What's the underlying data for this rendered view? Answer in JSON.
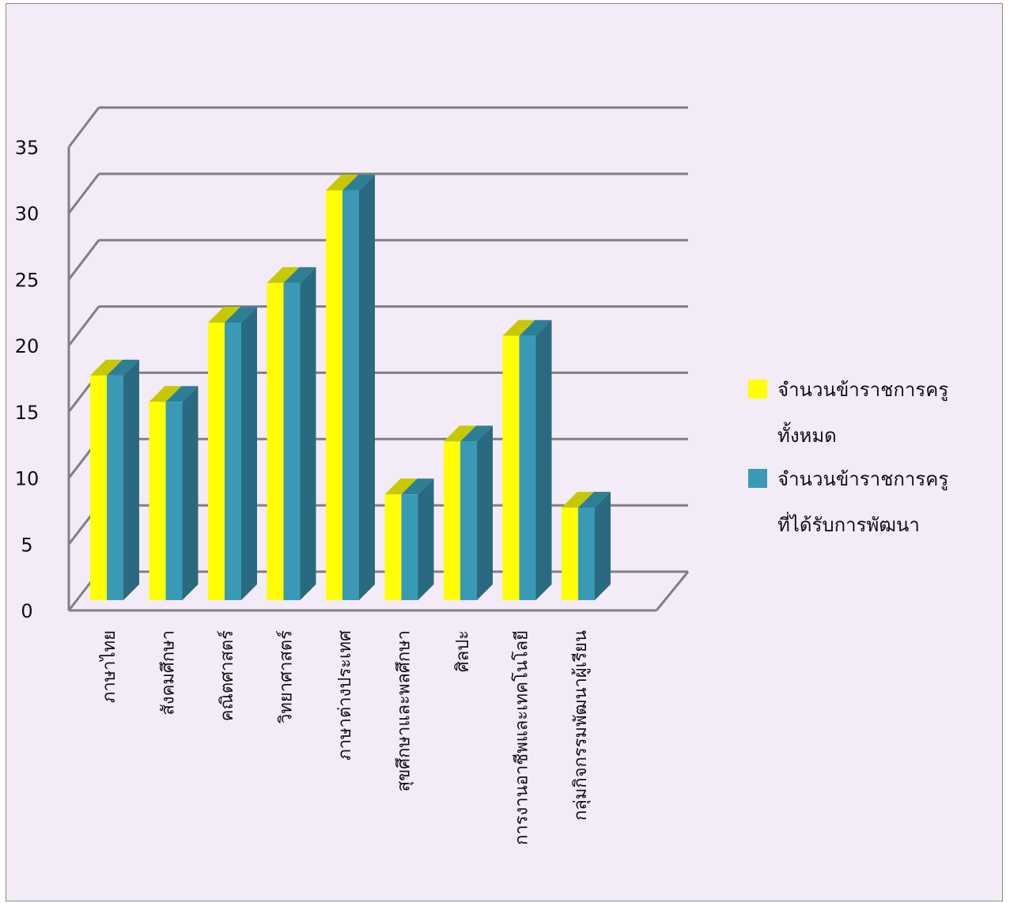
{
  "chart_data": {
    "type": "bar",
    "style": "3d-clustered-column",
    "categories": [
      "ภาษาไทย",
      "สังคมศึกษา",
      "คณิตศาสตร์",
      "วิทยาศาสตร์",
      "ภาษาต่างประเทศ",
      "สุขศึกษาและพลศึกษา",
      "ศิลปะ",
      "การงานอาชีพและเทคโนโลยี",
      "กลุ่มกิจกรรมพัฒนาผู้เรียน"
    ],
    "series": [
      {
        "name": "จำนวนข้าราชการครูทั้งหมด",
        "legend_lines": [
          "จำนวนข้าราชการครู",
          "ทั้งหมด"
        ],
        "color": "#ffff00",
        "values": [
          17,
          15,
          21,
          24,
          31,
          8,
          12,
          20,
          7
        ]
      },
      {
        "name": "จำนวนข้าราชการครูที่ได้รับการพัฒนา",
        "legend_lines": [
          "จำนวนข้าราชการครู",
          "ที่ได้รับการพัฒนา"
        ],
        "color": "#3a9ab5",
        "values": [
          17,
          15,
          21,
          24,
          31,
          8,
          12,
          20,
          7
        ]
      }
    ],
    "y_ticks": [
      "0",
      "5",
      "10",
      "15",
      "20",
      "25",
      "30",
      "35"
    ],
    "ylim": [
      0,
      35
    ],
    "grid": true,
    "legend_position": "right",
    "colors": {
      "background": "#f3ebf7",
      "grid": "#808080",
      "bar_top_yellow": "#c8c800",
      "bar_side": "#2a6a80",
      "bar_top_blue": "#2d7f96"
    }
  }
}
